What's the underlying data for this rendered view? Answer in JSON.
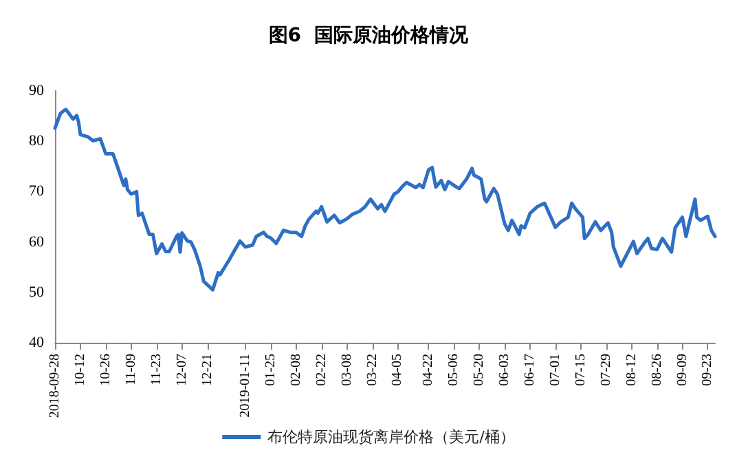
{
  "chart_data": {
    "type": "line",
    "title": "图6  国际原油价格情况",
    "x": [
      "2018-09-28",
      "2018-10-01",
      "2018-10-03",
      "2018-10-04",
      "2018-10-08",
      "2018-10-10",
      "2018-10-11",
      "2018-10-12",
      "2018-10-16",
      "2018-10-19",
      "2018-10-23",
      "2018-10-26",
      "2018-10-30",
      "2018-11-01",
      "2018-11-05",
      "2018-11-06",
      "2018-11-07",
      "2018-11-09",
      "2018-11-12",
      "2018-11-13",
      "2018-11-15",
      "2018-11-19",
      "2018-11-21",
      "2018-11-23",
      "2018-11-26",
      "2018-11-28",
      "2018-11-30",
      "2018-12-04",
      "2018-12-05",
      "2018-12-06",
      "2018-12-07",
      "2018-12-10",
      "2018-12-12",
      "2018-12-14",
      "2018-12-17",
      "2018-12-19",
      "2018-12-24",
      "2018-12-27",
      "2018-12-28",
      "2019-01-02",
      "2019-01-04",
      "2019-01-08",
      "2019-01-11",
      "2019-01-15",
      "2019-01-17",
      "2019-01-21",
      "2019-01-23",
      "2019-01-25",
      "2019-01-28",
      "2019-02-01",
      "2019-02-05",
      "2019-02-08",
      "2019-02-11",
      "2019-02-13",
      "2019-02-15",
      "2019-02-19",
      "2019-02-20",
      "2019-02-22",
      "2019-02-25",
      "2019-03-01",
      "2019-03-04",
      "2019-03-08",
      "2019-03-11",
      "2019-03-15",
      "2019-03-18",
      "2019-03-21",
      "2019-03-25",
      "2019-03-27",
      "2019-03-29",
      "2019-04-03",
      "2019-04-05",
      "2019-04-08",
      "2019-04-10",
      "2019-04-15",
      "2019-04-17",
      "2019-04-19",
      "2019-04-22",
      "2019-04-24",
      "2019-04-26",
      "2019-04-29",
      "2019-05-01",
      "2019-05-03",
      "2019-05-07",
      "2019-05-09",
      "2019-05-13",
      "2019-05-16",
      "2019-05-17",
      "2019-05-21",
      "2019-05-23",
      "2019-05-24",
      "2019-05-28",
      "2019-05-30",
      "2019-06-03",
      "2019-06-05",
      "2019-06-07",
      "2019-06-11",
      "2019-06-12",
      "2019-06-14",
      "2019-06-17",
      "2019-06-21",
      "2019-06-25",
      "2019-07-01",
      "2019-07-04",
      "2019-07-08",
      "2019-07-10",
      "2019-07-12",
      "2019-07-16",
      "2019-07-17",
      "2019-07-19",
      "2019-07-23",
      "2019-07-26",
      "2019-07-30",
      "2019-08-01",
      "2019-08-02",
      "2019-08-06",
      "2019-08-09",
      "2019-08-13",
      "2019-08-15",
      "2019-08-19",
      "2019-08-21",
      "2019-08-23",
      "2019-08-26",
      "2019-08-29",
      "2019-09-03",
      "2019-09-05",
      "2019-09-09",
      "2019-09-11",
      "2019-09-16",
      "2019-09-17",
      "2019-09-19",
      "2019-09-23",
      "2019-09-25",
      "2019-09-27"
    ],
    "series": [
      {
        "name": "布伦特原油现货离岸价格（美元/桶）",
        "color": "#2e6fc4",
        "values": [
          82.6,
          85.5,
          86.1,
          86.3,
          84.4,
          85.1,
          83.8,
          81.3,
          80.9,
          80.1,
          80.5,
          77.5,
          77.5,
          75.4,
          71.2,
          72.5,
          70.4,
          69.5,
          70,
          65.3,
          65.7,
          61.5,
          61.5,
          57.7,
          59.6,
          58.1,
          58.1,
          61.1,
          61.5,
          58,
          61.8,
          60.2,
          60,
          58.5,
          55.3,
          52.2,
          50.5,
          53.9,
          53.5,
          56.4,
          57.7,
          60.2,
          59,
          59.4,
          61.1,
          61.9,
          61.1,
          60.8,
          59.7,
          62.3,
          61.9,
          61.9,
          61.1,
          63.2,
          64.5,
          66.1,
          65.7,
          67,
          64,
          65.3,
          63.8,
          64.6,
          65.5,
          66.1,
          67,
          68.5,
          66.6,
          67.4,
          66.1,
          69.5,
          69.9,
          71.2,
          71.8,
          70.8,
          71.4,
          70.8,
          74.3,
          74.8,
          70.9,
          72.2,
          70.4,
          72,
          71,
          70.6,
          72.5,
          74.6,
          73.3,
          72.5,
          68.5,
          68,
          70.6,
          69.5,
          63.6,
          62.3,
          64.3,
          61.5,
          63.2,
          62.8,
          65.7,
          67,
          67.7,
          62.9,
          64,
          64.9,
          67.7,
          66.6,
          64.9,
          60.7,
          61.5,
          64,
          62.3,
          63.8,
          61.9,
          59,
          55.2,
          57.3,
          60.1,
          57.7,
          59.8,
          60.7,
          58.7,
          58.5,
          60.7,
          58,
          62.8,
          64.9,
          61.1,
          68.5,
          64.9,
          64.3,
          65.1,
          62.3,
          61.1
        ]
      }
    ],
    "xlim": [
      "2018-09-28",
      "2019-09-27"
    ],
    "xticks": [
      {
        "value": "2018-09-28",
        "label": "2018-09-28"
      },
      {
        "value": "2018-10-12",
        "label": "10-12"
      },
      {
        "value": "2018-10-26",
        "label": "10-26"
      },
      {
        "value": "2018-11-09",
        "label": "11-09"
      },
      {
        "value": "2018-11-23",
        "label": "11-23"
      },
      {
        "value": "2018-12-07",
        "label": "12-07"
      },
      {
        "value": "2018-12-21",
        "label": "12-21"
      },
      {
        "value": "2019-01-11",
        "label": "2019-01-11"
      },
      {
        "value": "2019-01-25",
        "label": "01-25"
      },
      {
        "value": "2019-02-08",
        "label": "02-08"
      },
      {
        "value": "2019-02-22",
        "label": "02-22"
      },
      {
        "value": "2019-03-08",
        "label": "03-08"
      },
      {
        "value": "2019-03-22",
        "label": "03-22"
      },
      {
        "value": "2019-04-05",
        "label": "04-05"
      },
      {
        "value": "2019-04-22",
        "label": "04-22"
      },
      {
        "value": "2019-05-06",
        "label": "05-06"
      },
      {
        "value": "2019-05-20",
        "label": "05-20"
      },
      {
        "value": "2019-06-03",
        "label": "06-03"
      },
      {
        "value": "2019-06-17",
        "label": "06-17"
      },
      {
        "value": "2019-07-01",
        "label": "07-01"
      },
      {
        "value": "2019-07-15",
        "label": "07-15"
      },
      {
        "value": "2019-07-29",
        "label": "07-29"
      },
      {
        "value": "2019-08-12",
        "label": "08-12"
      },
      {
        "value": "2019-08-26",
        "label": "08-26"
      },
      {
        "value": "2019-09-09",
        "label": "09-09"
      },
      {
        "value": "2019-09-23",
        "label": "09-23"
      }
    ],
    "ylim": [
      40,
      90
    ],
    "yticks": [
      40,
      50,
      60,
      70,
      80,
      90
    ],
    "grid": false,
    "legend": "bottom",
    "marker": "none",
    "line_style": "solid"
  }
}
